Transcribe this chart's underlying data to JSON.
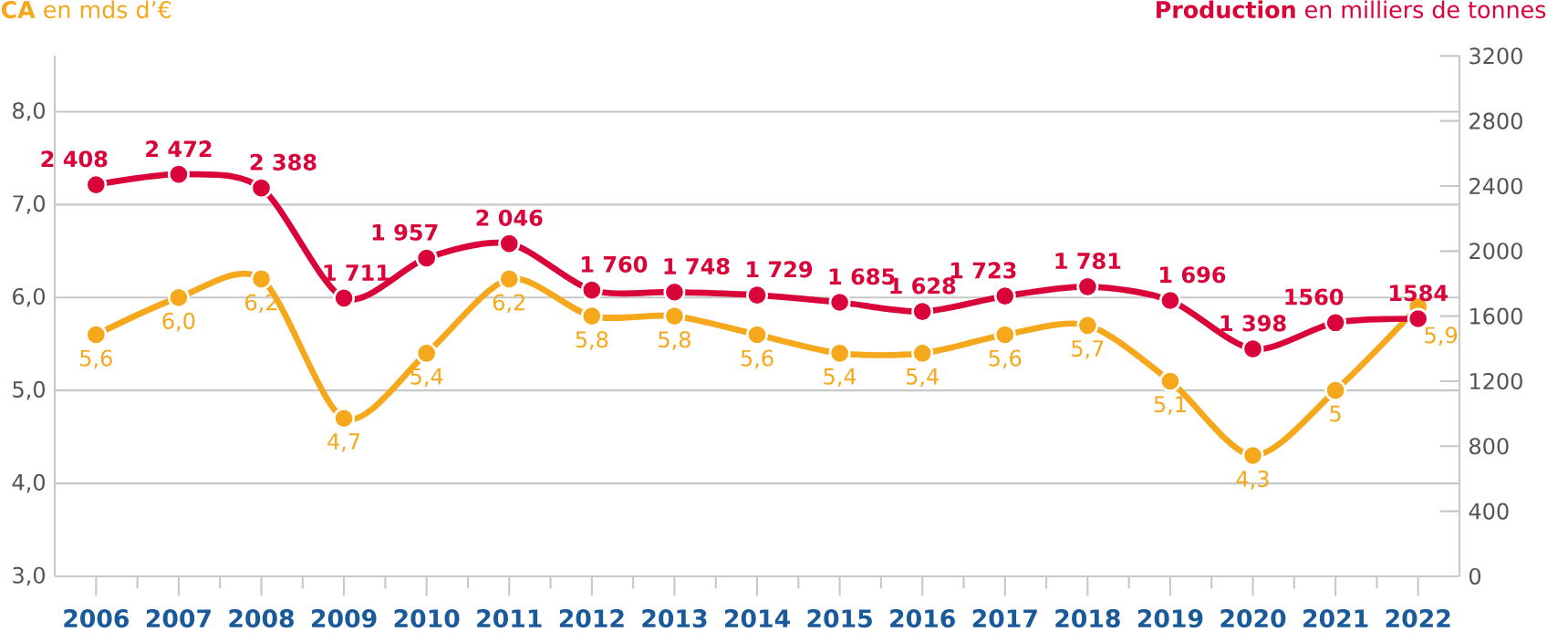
{
  "chart_data": {
    "type": "line",
    "ylabel": "**CA** en mds d’€",
    "y2label": "**Production** en milliers de tonnes",
    "categories": [
      "2006",
      "2007",
      "2008",
      "2009",
      "2010",
      "2011",
      "2012",
      "2013",
      "2014",
      "2015",
      "2016",
      "2017",
      "2018",
      "2019",
      "2020",
      "2021",
      "2022"
    ],
    "series": [
      {
        "color": "#f5a81c",
        "values": [
          5.6,
          6.0,
          6.2,
          4.7,
          5.4,
          6.2,
          5.8,
          5.8,
          5.6,
          5.4,
          5.4,
          5.6,
          5.7,
          5.1,
          4.3,
          5,
          5.9
        ],
        "value_labels": [
          "5,6",
          "6,0",
          "6,2",
          "4,7",
          "5,4",
          "6,2",
          "5,8",
          "5,8",
          "5,6",
          "5,4",
          "5,4",
          "5,6",
          "5,7",
          "5,1",
          "4,3",
          "5",
          "5,9"
        ]
      },
      {
        "color": "#d9043a",
        "axis": "y2",
        "values": [
          2408,
          2472,
          2388,
          1711,
          1957,
          2046,
          1760,
          1748,
          1729,
          1685,
          1628,
          1723,
          1781,
          1696,
          1398,
          1560,
          1584
        ],
        "value_labels": [
          "2 408",
          "2 472",
          "2 388",
          "1 711",
          "1 957",
          "2 046",
          "1 760",
          "1 748",
          "1 729",
          "1 685",
          "1 628",
          "1 723",
          "1 781",
          "1 696",
          "1 398",
          "1560",
          "1584"
        ]
      }
    ],
    "ylim": [
      3,
      8.6
    ],
    "yticks": [
      {
        "value": 3,
        "label": "3,0"
      },
      {
        "value": 4,
        "label": "4,0"
      },
      {
        "value": 5,
        "label": "5,0"
      },
      {
        "value": 6,
        "label": "6,0"
      },
      {
        "value": 7,
        "label": "7,0"
      },
      {
        "value": 8,
        "label": "8,0"
      }
    ],
    "y2lim": [
      0,
      3200
    ],
    "y2ticks": [
      0,
      400,
      800,
      1200,
      1600,
      2000,
      2400,
      2800,
      3200
    ],
    "grid": "y",
    "marker": "circle",
    "line_style": "solid"
  }
}
